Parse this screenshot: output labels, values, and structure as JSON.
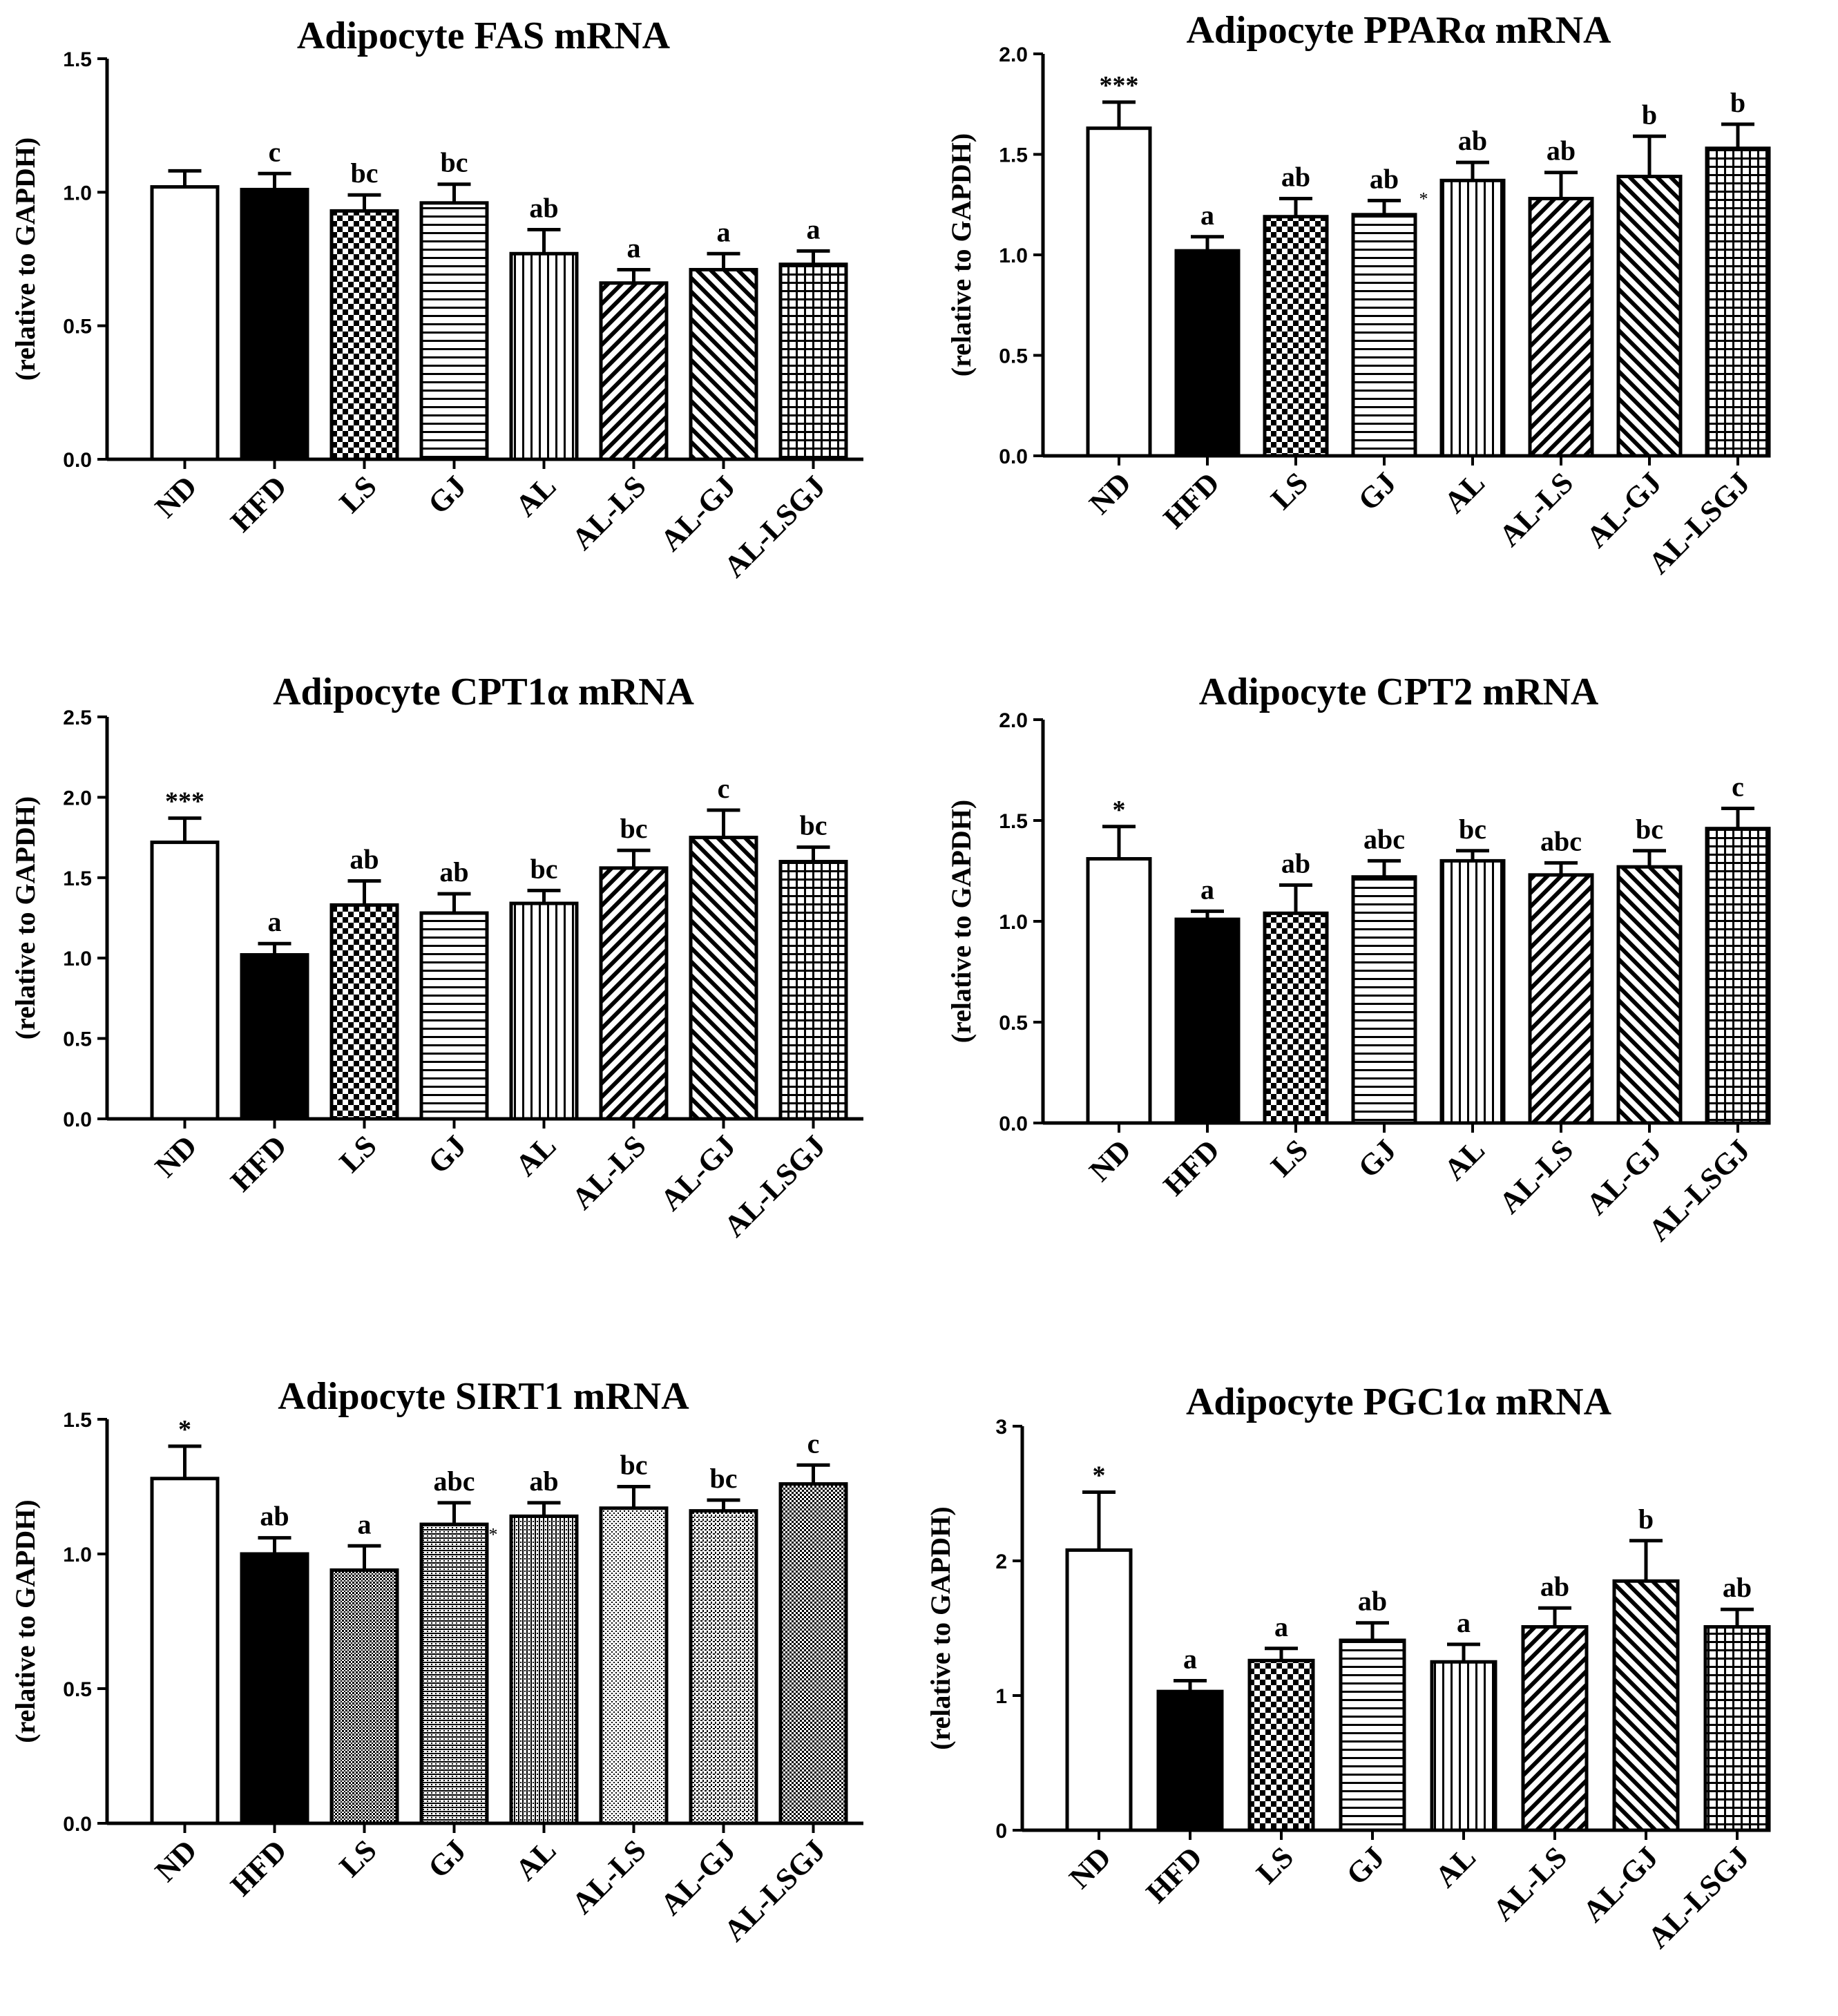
{
  "categories": [
    "ND",
    "HFD",
    "LS",
    "GJ",
    "AL",
    "AL-LS",
    "AL-GJ",
    "AL-LSGJ"
  ],
  "patterns": [
    "white",
    "black",
    "checker",
    "hlines",
    "vlines",
    "diagfwd",
    "diagback",
    "grid"
  ],
  "ylabel": "(relative to GAPDH)",
  "chart_data": [
    {
      "type": "bar",
      "title": "Adipocyte FAS mRNA",
      "ylabel": "(relative to GAPDH)",
      "ylim": [
        0,
        1.5
      ],
      "yticks": [
        "0.0",
        "0.5",
        "1.0",
        "1.5"
      ],
      "categories": [
        "ND",
        "HFD",
        "LS",
        "GJ",
        "AL",
        "AL-LS",
        "AL-GJ",
        "AL-LSGJ"
      ],
      "values": [
        1.02,
        1.01,
        0.93,
        0.96,
        0.77,
        0.66,
        0.71,
        0.73
      ],
      "errors": [
        0.06,
        0.06,
        0.06,
        0.07,
        0.09,
        0.05,
        0.06,
        0.05
      ],
      "labels": [
        "",
        "c",
        "bc",
        "bc",
        "ab",
        "a",
        "a",
        "a"
      ]
    },
    {
      "type": "bar",
      "title": "Adipocyte PPARα mRNA",
      "ylabel": "(relative to GAPDH)",
      "ylim": [
        0,
        2.0
      ],
      "yticks": [
        "0.0",
        "0.5",
        "1.0",
        "1.5",
        "2.0"
      ],
      "categories": [
        "ND",
        "HFD",
        "LS",
        "GJ",
        "AL",
        "AL-LS",
        "AL-GJ",
        "AL-LSGJ"
      ],
      "values": [
        1.63,
        1.02,
        1.19,
        1.2,
        1.37,
        1.28,
        1.39,
        1.53
      ],
      "errors": [
        0.13,
        0.07,
        0.09,
        0.07,
        0.09,
        0.13,
        0.2,
        0.12
      ],
      "labels": [
        "***",
        "a",
        "ab",
        "ab",
        "ab",
        "ab",
        "b",
        "b"
      ],
      "note": "*"
    },
    {
      "type": "bar",
      "title": "Adipocyte CPT1α mRNA",
      "ylabel": "(relative to GAPDH)",
      "ylim": [
        0,
        2.5
      ],
      "yticks": [
        "0.0",
        "0.5",
        "1.0",
        "1.5",
        "2.0",
        "2.5"
      ],
      "categories": [
        "ND",
        "HFD",
        "LS",
        "GJ",
        "AL",
        "AL-LS",
        "AL-GJ",
        "AL-LSGJ"
      ],
      "values": [
        1.72,
        1.02,
        1.33,
        1.28,
        1.34,
        1.56,
        1.75,
        1.6
      ],
      "errors": [
        0.15,
        0.07,
        0.15,
        0.12,
        0.08,
        0.11,
        0.17,
        0.09
      ],
      "labels": [
        "***",
        "a",
        "ab",
        "ab",
        "bc",
        "bc",
        "c",
        "bc"
      ]
    },
    {
      "type": "bar",
      "title": "Adipocyte CPT2 mRNA",
      "ylabel": "(relative to GAPDH)",
      "ylim": [
        0,
        2.0
      ],
      "yticks": [
        "0.0",
        "0.5",
        "1.0",
        "1.5",
        "2.0"
      ],
      "categories": [
        "ND",
        "HFD",
        "LS",
        "GJ",
        "AL",
        "AL-LS",
        "AL-GJ",
        "AL-LSGJ"
      ],
      "values": [
        1.31,
        1.01,
        1.04,
        1.22,
        1.3,
        1.23,
        1.27,
        1.46
      ],
      "errors": [
        0.16,
        0.04,
        0.14,
        0.08,
        0.05,
        0.06,
        0.08,
        0.1
      ],
      "labels": [
        "*",
        "a",
        "ab",
        "abc",
        "bc",
        "abc",
        "bc",
        "c"
      ]
    },
    {
      "type": "bar",
      "title": "Adipocyte SIRT1 mRNA",
      "ylabel": "(relative to GAPDH)",
      "ylim": [
        0,
        1.5
      ],
      "yticks": [
        "0.0",
        "0.5",
        "1.0",
        "1.5"
      ],
      "categories": [
        "ND",
        "HFD",
        "LS",
        "GJ",
        "AL",
        "AL-LS",
        "AL-GJ",
        "AL-LSGJ"
      ],
      "values": [
        1.28,
        1.0,
        0.94,
        1.11,
        1.14,
        1.17,
        1.16,
        1.26
      ],
      "errors": [
        0.12,
        0.06,
        0.09,
        0.08,
        0.05,
        0.08,
        0.04,
        0.07
      ],
      "labels": [
        "*",
        "ab",
        "a",
        "abc",
        "ab",
        "bc",
        "bc",
        "c"
      ],
      "note": "*"
    },
    {
      "type": "bar",
      "title": "Adipocyte PGC1α mRNA",
      "ylabel": "(relative to GAPDH)",
      "ylim": [
        0,
        3
      ],
      "yticks": [
        "0",
        "1",
        "2",
        "3"
      ],
      "categories": [
        "ND",
        "HFD",
        "LS",
        "GJ",
        "AL",
        "AL-LS",
        "AL-GJ",
        "AL-LSGJ"
      ],
      "values": [
        2.08,
        1.03,
        1.26,
        1.41,
        1.25,
        1.51,
        1.85,
        1.51
      ],
      "errors": [
        0.43,
        0.08,
        0.09,
        0.13,
        0.13,
        0.14,
        0.3,
        0.13
      ],
      "labels": [
        "*",
        "a",
        "a",
        "ab",
        "a",
        "ab",
        "b",
        "ab"
      ]
    }
  ]
}
